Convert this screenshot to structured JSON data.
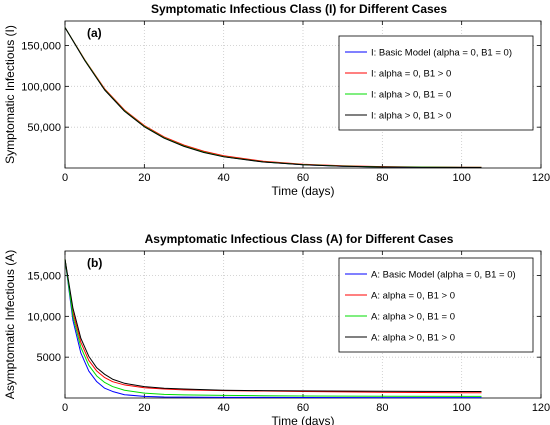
{
  "chart_data": [
    {
      "type": "line",
      "panel_label": "(a)",
      "title": "Symptomatic Infectious Class (I) for Different Cases",
      "xlabel": "Time (days)",
      "ylabel": "Symptomatic Infectious (I)",
      "xlim": [
        0,
        120
      ],
      "ylim": [
        0,
        180000
      ],
      "xticks": [
        0,
        20,
        40,
        60,
        80,
        100,
        120
      ],
      "xtick_labels": [
        "0",
        "20",
        "40",
        "60",
        "80",
        "100",
        "120"
      ],
      "yticks": [
        50000,
        100000,
        150000
      ],
      "ytick_labels": [
        "50,000",
        "100,000",
        "150,000"
      ],
      "grid": true,
      "legend_position": "top-right",
      "x": [
        0,
        5,
        10,
        15,
        20,
        25,
        30,
        35,
        40,
        50,
        60,
        70,
        80,
        90,
        100,
        105
      ],
      "series": [
        {
          "name": "I: Basic Model (alpha = 0, B1 = 0)",
          "color": "#0000ff",
          "values": [
            172000,
            132000,
            96000,
            70000,
            51000,
            37000,
            27000,
            19500,
            14000,
            7500,
            4000,
            2200,
            1300,
            900,
            700,
            650
          ]
        },
        {
          "name": "I: alpha = 0, B1 > 0",
          "color": "#ff0000",
          "values": [
            172000,
            132500,
            97000,
            71000,
            52000,
            38000,
            28000,
            20500,
            15000,
            8200,
            4600,
            2700,
            1700,
            1200,
            900,
            850
          ]
        },
        {
          "name": "I: alpha > 0, B1 = 0",
          "color": "#00dd00",
          "values": [
            172000,
            132000,
            96000,
            70000,
            51000,
            37000,
            27000,
            19500,
            14000,
            7500,
            4100,
            2300,
            1400,
            1000,
            800,
            750
          ]
        },
        {
          "name": "I: alpha > 0, B1 > 0",
          "color": "#000000",
          "values": [
            172000,
            131500,
            95500,
            69500,
            50500,
            36500,
            26500,
            19000,
            13700,
            7300,
            3900,
            2100,
            1200,
            800,
            600,
            550
          ]
        }
      ]
    },
    {
      "type": "line",
      "panel_label": "(b)",
      "title": "Asymptomatic Infectious Class (A) for Different Cases",
      "xlabel": "Time (days)",
      "ylabel": "Asymptomatic Infectious (A)",
      "xlim": [
        0,
        120
      ],
      "ylim": [
        0,
        18000
      ],
      "xticks": [
        0,
        20,
        40,
        60,
        80,
        100,
        120
      ],
      "xtick_labels": [
        "0",
        "20",
        "40",
        "60",
        "80",
        "100",
        "120"
      ],
      "yticks": [
        5000,
        10000,
        15000
      ],
      "ytick_labels": [
        "5000",
        "10,000",
        "15,000"
      ],
      "grid": true,
      "legend_position": "top-right",
      "x": [
        0,
        2,
        4,
        6,
        8,
        10,
        12,
        15,
        20,
        25,
        30,
        40,
        50,
        60,
        80,
        100,
        105
      ],
      "series": [
        {
          "name": "A: Basic Model (alpha = 0, B1 = 0)",
          "color": "#0000ff",
          "values": [
            17000,
            9500,
            5500,
            3300,
            2000,
            1200,
            800,
            400,
            200,
            120,
            100,
            80,
            70,
            60,
            50,
            40,
            40
          ]
        },
        {
          "name": "A: alpha = 0, B1 > 0",
          "color": "#ff0000",
          "values": [
            17000,
            10500,
            6800,
            4600,
            3300,
            2500,
            2000,
            1600,
            1250,
            1100,
            1000,
            900,
            850,
            800,
            700,
            650,
            650
          ]
        },
        {
          "name": "A: alpha > 0, B1 = 0",
          "color": "#00dd00",
          "values": [
            17000,
            10000,
            6200,
            4000,
            2700,
            1900,
            1400,
            950,
            600,
            450,
            380,
            320,
            280,
            250,
            220,
            200,
            200
          ]
        },
        {
          "name": "A: alpha > 0, B1 > 0",
          "color": "#000000",
          "values": [
            17000,
            11000,
            7300,
            5100,
            3700,
            2900,
            2300,
            1800,
            1400,
            1200,
            1100,
            950,
            900,
            870,
            830,
            800,
            800
          ]
        }
      ]
    }
  ]
}
